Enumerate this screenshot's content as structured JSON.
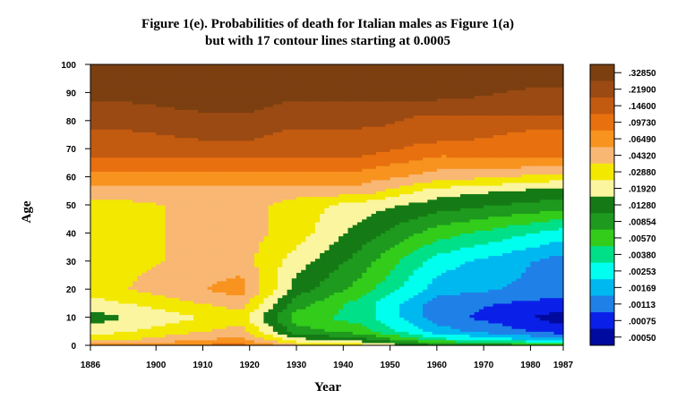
{
  "chart_data": {
    "type": "heatmap",
    "title_lines": [
      "Figure 1(e). Probabilities of death for Italian males as Figure 1(a)",
      "but with 17 contour lines starting at 0.0005"
    ],
    "xlabel": "Year",
    "ylabel": "Age",
    "xlim": [
      1886,
      1987
    ],
    "ylim": [
      0,
      100
    ],
    "x_ticks": [
      1886,
      1900,
      1910,
      1920,
      1930,
      1940,
      1950,
      1960,
      1970,
      1980,
      1987
    ],
    "y_ticks": [
      0,
      10,
      20,
      30,
      40,
      50,
      60,
      70,
      80,
      90,
      100
    ],
    "legend_levels": [
      ".32850",
      ".21900",
      ".14600",
      ".09730",
      ".06490",
      ".04320",
      ".02880",
      ".01920",
      ".01280",
      ".00854",
      ".00570",
      ".00380",
      ".00253",
      ".00169",
      ".00113",
      ".00075",
      ".00050"
    ],
    "legend_colors": [
      "#7b3f10",
      "#9a4a12",
      "#c25a10",
      "#e8700f",
      "#f8931f",
      "#f9b774",
      "#f2e800",
      "#fbf5a0",
      "#157a15",
      "#1e9a1e",
      "#33cc1a",
      "#00e088",
      "#00ffee",
      "#00b8f0",
      "#1f80e8",
      "#0a20e8",
      "#000a9e"
    ],
    "series": [
      {
        "name": "contour",
        "note": "approximate contour level index 0 (lowest, .00050) .. 16 (highest, .32850) at selected ages and years",
        "ages": [
          0,
          2,
          5,
          10,
          15,
          20,
          30,
          40,
          50,
          55,
          60,
          65,
          70,
          75,
          80,
          85,
          90,
          95,
          100
        ],
        "years": [
          1886,
          1918,
          1930,
          1944,
          1960,
          1987
        ],
        "levels": [
          [
            12,
            13,
            11,
            10,
            8,
            7
          ],
          [
            10,
            12,
            9,
            8,
            5,
            3
          ],
          [
            9,
            11,
            7,
            6,
            3,
            1
          ],
          [
            8,
            10,
            6,
            5,
            2,
            0
          ],
          [
            9,
            11,
            7,
            5,
            2,
            1
          ],
          [
            10,
            12,
            8,
            6,
            3,
            2
          ],
          [
            10,
            11,
            9,
            7,
            4,
            2
          ],
          [
            10,
            11,
            10,
            8,
            6,
            4
          ],
          [
            10,
            11,
            10,
            9,
            8,
            7
          ],
          [
            11,
            11,
            11,
            11,
            9,
            8
          ],
          [
            12,
            12,
            12,
            12,
            11,
            10
          ],
          [
            13,
            13,
            13,
            13,
            12,
            12
          ],
          [
            14,
            14,
            14,
            14,
            13,
            13
          ],
          [
            14,
            15,
            14,
            14,
            14,
            13
          ],
          [
            15,
            15,
            15,
            15,
            14,
            14
          ],
          [
            15,
            16,
            15,
            15,
            15,
            15
          ],
          [
            16,
            16,
            16,
            16,
            16,
            15
          ],
          [
            16,
            16,
            16,
            16,
            16,
            16
          ],
          [
            16,
            16,
            16,
            16,
            16,
            16
          ]
        ]
      }
    ]
  }
}
